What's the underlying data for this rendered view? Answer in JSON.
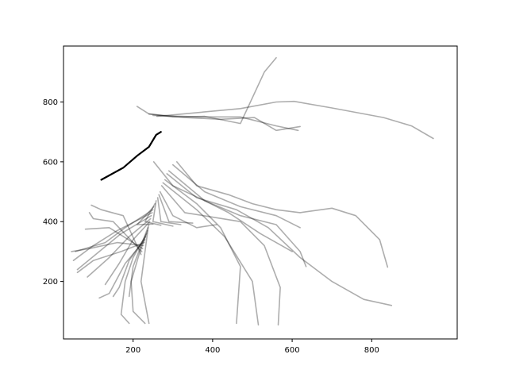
{
  "chart_data": {
    "type": "line",
    "title": "",
    "xlabel": "",
    "ylabel": "",
    "xlim": [
      25,
      1015
    ],
    "ylim": [
      8,
      987
    ],
    "x_ticks": [
      200,
      400,
      600,
      800
    ],
    "y_ticks": [
      200,
      400,
      600,
      800
    ],
    "grid": false,
    "legend": "none",
    "line_color": "#000000",
    "line_opacity": 0.32,
    "series": [
      {
        "role": "main",
        "points": [
          [
            120,
            540
          ],
          [
            175,
            580
          ],
          [
            210,
            620
          ],
          [
            240,
            650
          ],
          [
            258,
            690
          ],
          [
            270,
            700
          ]
        ]
      },
      {
        "points": [
          [
            210,
            785
          ],
          [
            240,
            760
          ],
          [
            300,
            750
          ],
          [
            380,
            752
          ],
          [
            470,
            728
          ],
          [
            530,
            900
          ],
          [
            560,
            948
          ]
        ]
      },
      {
        "points": [
          [
            240,
            760
          ],
          [
            330,
            748
          ],
          [
            420,
            742
          ],
          [
            505,
            748
          ],
          [
            560,
            705
          ],
          [
            620,
            718
          ]
        ]
      },
      {
        "points": [
          [
            250,
            755
          ],
          [
            370,
            750
          ],
          [
            470,
            750
          ],
          [
            560,
            720
          ],
          [
            615,
            705
          ]
        ]
      },
      {
        "points": [
          [
            260,
            752
          ],
          [
            470,
            778
          ],
          [
            560,
            800
          ],
          [
            605,
            802
          ],
          [
            700,
            780
          ],
          [
            830,
            748
          ],
          [
            900,
            720
          ],
          [
            955,
            678
          ]
        ]
      },
      {
        "points": [
          [
            310,
            600
          ],
          [
            360,
            520
          ],
          [
            440,
            490
          ],
          [
            500,
            460
          ],
          [
            560,
            440
          ],
          [
            620,
            430
          ],
          [
            700,
            445
          ],
          [
            760,
            420
          ],
          [
            820,
            340
          ],
          [
            840,
            248
          ]
        ]
      },
      {
        "points": [
          [
            300,
            590
          ],
          [
            380,
            500
          ],
          [
            470,
            450
          ],
          [
            560,
            420
          ],
          [
            620,
            380
          ]
        ]
      },
      {
        "points": [
          [
            290,
            570
          ],
          [
            380,
            470
          ],
          [
            470,
            420
          ],
          [
            560,
            390
          ],
          [
            620,
            300
          ],
          [
            635,
            250
          ]
        ]
      },
      {
        "points": [
          [
            285,
            560
          ],
          [
            360,
            480
          ],
          [
            460,
            440
          ],
          [
            540,
            380
          ],
          [
            620,
            280
          ],
          [
            700,
            200
          ],
          [
            780,
            140
          ],
          [
            850,
            120
          ]
        ]
      },
      {
        "points": [
          [
            280,
            540
          ],
          [
            360,
            460
          ],
          [
            420,
            380
          ],
          [
            470,
            250
          ],
          [
            460,
            60
          ]
        ]
      },
      {
        "points": [
          [
            275,
            530
          ],
          [
            360,
            440
          ],
          [
            430,
            350
          ],
          [
            500,
            200
          ],
          [
            515,
            55
          ]
        ]
      },
      {
        "points": [
          [
            272,
            520
          ],
          [
            330,
            430
          ],
          [
            470,
            400
          ],
          [
            530,
            320
          ],
          [
            570,
            180
          ],
          [
            565,
            55
          ]
        ]
      },
      {
        "points": [
          [
            268,
            500
          ],
          [
            300,
            420
          ],
          [
            360,
            380
          ],
          [
            410,
            390
          ]
        ]
      },
      {
        "points": [
          [
            265,
            490
          ],
          [
            290,
            400
          ],
          [
            350,
            395
          ]
        ]
      },
      {
        "points": [
          [
            262,
            480
          ],
          [
            270,
            400
          ],
          [
            320,
            390
          ]
        ]
      },
      {
        "points": [
          [
            258,
            470
          ],
          [
            250,
            400
          ],
          [
            300,
            385
          ]
        ]
      },
      {
        "points": [
          [
            255,
            460
          ],
          [
            230,
            400
          ],
          [
            270,
            388
          ]
        ]
      },
      {
        "points": [
          [
            252,
            450
          ],
          [
            210,
            390
          ],
          [
            250,
            392
          ]
        ]
      },
      {
        "points": [
          [
            250,
            440
          ],
          [
            180,
            380
          ],
          [
            130,
            330
          ],
          [
            55,
            300
          ]
        ]
      },
      {
        "points": [
          [
            248,
            430
          ],
          [
            160,
            370
          ],
          [
            100,
            320
          ],
          [
            50,
            270
          ]
        ]
      },
      {
        "points": [
          [
            246,
            420
          ],
          [
            170,
            360
          ],
          [
            115,
            300
          ],
          [
            60,
            240
          ]
        ]
      },
      {
        "points": [
          [
            244,
            410
          ],
          [
            190,
            350
          ],
          [
            140,
            280
          ],
          [
            85,
            215
          ]
        ]
      },
      {
        "points": [
          [
            242,
            400
          ],
          [
            200,
            340
          ],
          [
            165,
            260
          ],
          [
            130,
            190
          ]
        ]
      },
      {
        "points": [
          [
            240,
            390
          ],
          [
            220,
            320
          ],
          [
            200,
            250
          ],
          [
            190,
            150
          ]
        ]
      },
      {
        "points": [
          [
            238,
            380
          ],
          [
            230,
            300
          ],
          [
            220,
            200
          ],
          [
            240,
            60
          ]
        ]
      },
      {
        "points": [
          [
            236,
            370
          ],
          [
            215,
            290
          ],
          [
            195,
            200
          ],
          [
            200,
            100
          ],
          [
            230,
            60
          ]
        ]
      },
      {
        "points": [
          [
            234,
            360
          ],
          [
            200,
            280
          ],
          [
            180,
            200
          ],
          [
            170,
            90
          ],
          [
            190,
            60
          ]
        ]
      },
      {
        "points": [
          [
            232,
            350
          ],
          [
            190,
            270
          ],
          [
            165,
            180
          ],
          [
            150,
            150
          ]
        ]
      },
      {
        "points": [
          [
            230,
            340
          ],
          [
            180,
            260
          ],
          [
            140,
            160
          ],
          [
            115,
            145
          ]
        ]
      },
      {
        "points": [
          [
            228,
            330
          ],
          [
            170,
            300
          ],
          [
            100,
            270
          ],
          [
            60,
            230
          ]
        ]
      },
      {
        "points": [
          [
            226,
            320
          ],
          [
            160,
            330
          ],
          [
            90,
            310
          ],
          [
            45,
            300
          ]
        ]
      },
      {
        "points": [
          [
            224,
            310
          ],
          [
            140,
            380
          ],
          [
            80,
            375
          ]
        ]
      },
      {
        "points": [
          [
            222,
            300
          ],
          [
            150,
            400
          ],
          [
            100,
            410
          ],
          [
            90,
            430
          ]
        ]
      },
      {
        "points": [
          [
            220,
            290
          ],
          [
            175,
            420
          ],
          [
            120,
            440
          ],
          [
            95,
            455
          ]
        ]
      },
      {
        "points": [
          [
            252,
            600
          ],
          [
            300,
            520
          ],
          [
            380,
            470
          ],
          [
            440,
            430
          ],
          [
            520,
            360
          ],
          [
            600,
            300
          ]
        ]
      }
    ]
  }
}
